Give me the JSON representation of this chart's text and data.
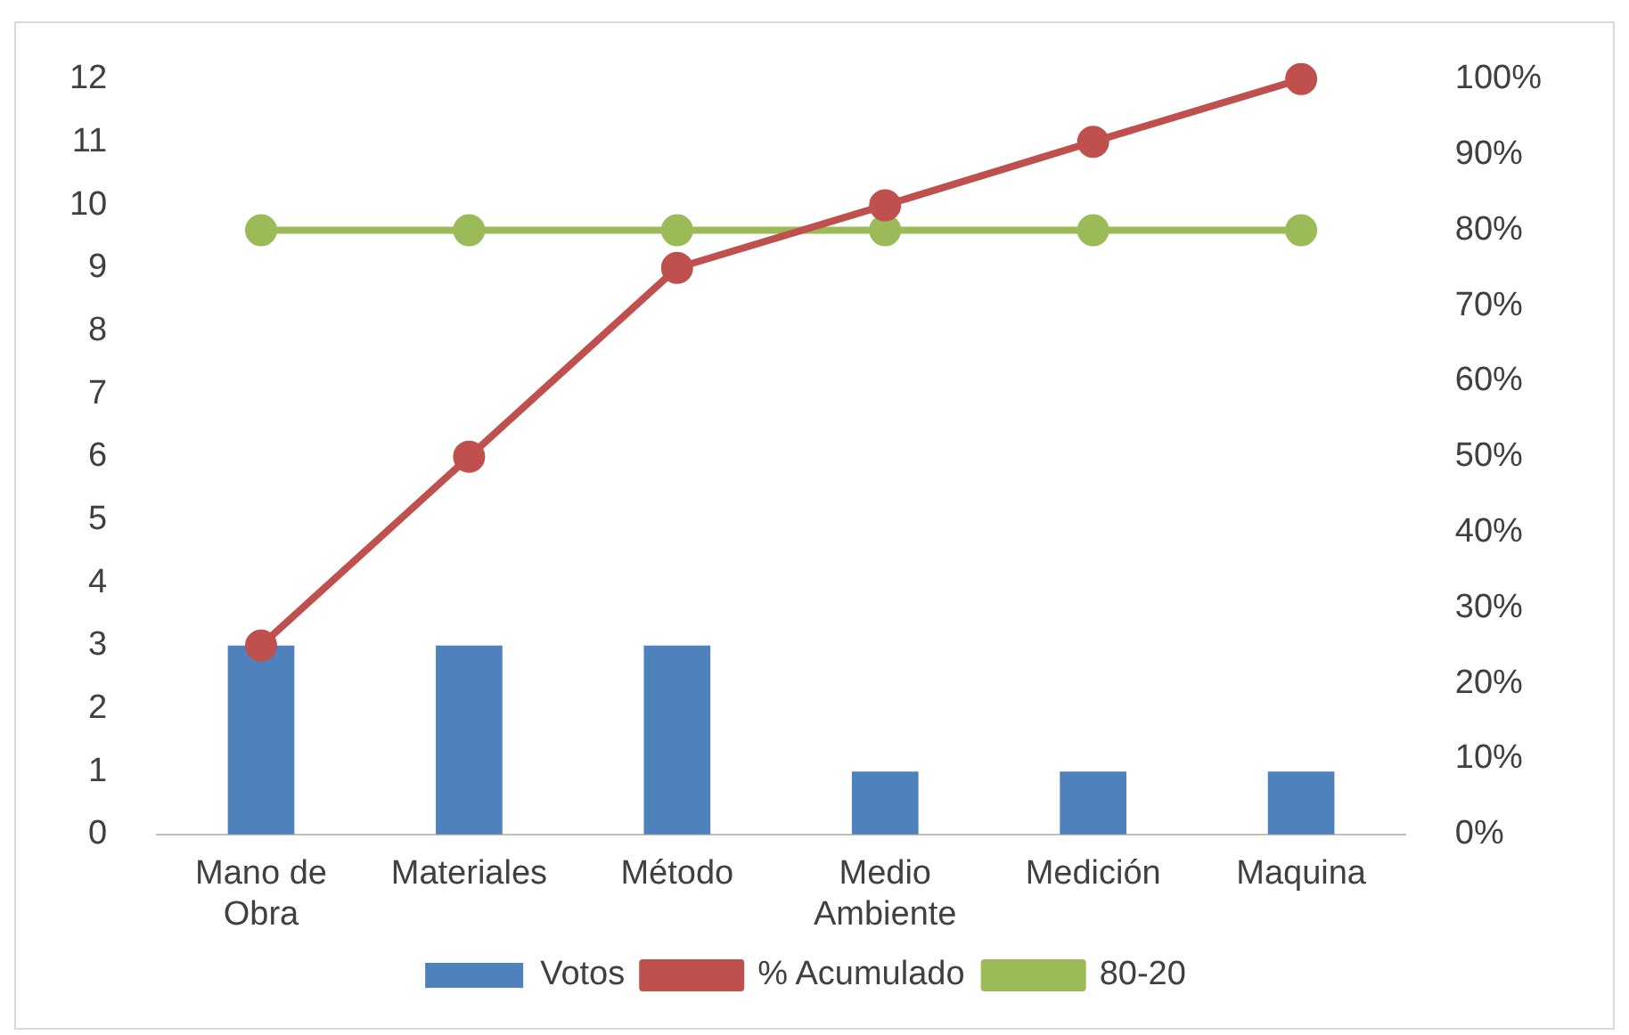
{
  "chart_data": {
    "type": "bar",
    "categories": [
      "Mano de Obra",
      "Materiales",
      "Método",
      "Medio Ambiente",
      "Medición",
      "Maquina"
    ],
    "series": [
      {
        "name": "Votos",
        "color": "#4f81bd",
        "values": [
          3,
          3,
          3,
          1,
          1,
          1
        ]
      },
      {
        "name": "% Acumulado",
        "type": "line",
        "axis": "y2",
        "color": "#c0504d",
        "values": [
          25,
          50,
          75,
          83.3,
          91.7,
          100
        ]
      },
      {
        "name": "80-20",
        "type": "line",
        "axis": "y2",
        "color": "#9bbb59",
        "values": [
          80,
          80,
          80,
          80,
          80,
          80
        ]
      }
    ],
    "ylim": [
      0,
      12
    ],
    "yticks": [
      0,
      1,
      2,
      3,
      4,
      5,
      6,
      7,
      8,
      9,
      10,
      11,
      12
    ],
    "y2lim": [
      0,
      100
    ],
    "y2ticks": [
      {
        "value": 0,
        "label": "0%"
      },
      {
        "value": 10,
        "label": "10%"
      },
      {
        "value": 20,
        "label": "20%"
      },
      {
        "value": 30,
        "label": "30%"
      },
      {
        "value": 40,
        "label": "40%"
      },
      {
        "value": 50,
        "label": "50%"
      },
      {
        "value": 60,
        "label": "60%"
      },
      {
        "value": 70,
        "label": "70%"
      },
      {
        "value": 80,
        "label": "80%"
      },
      {
        "value": 90,
        "label": "90%"
      },
      {
        "value": 100,
        "label": "100%"
      }
    ],
    "grid": false,
    "legend": "bottom",
    "marker": "circle",
    "line_style": "solid"
  }
}
